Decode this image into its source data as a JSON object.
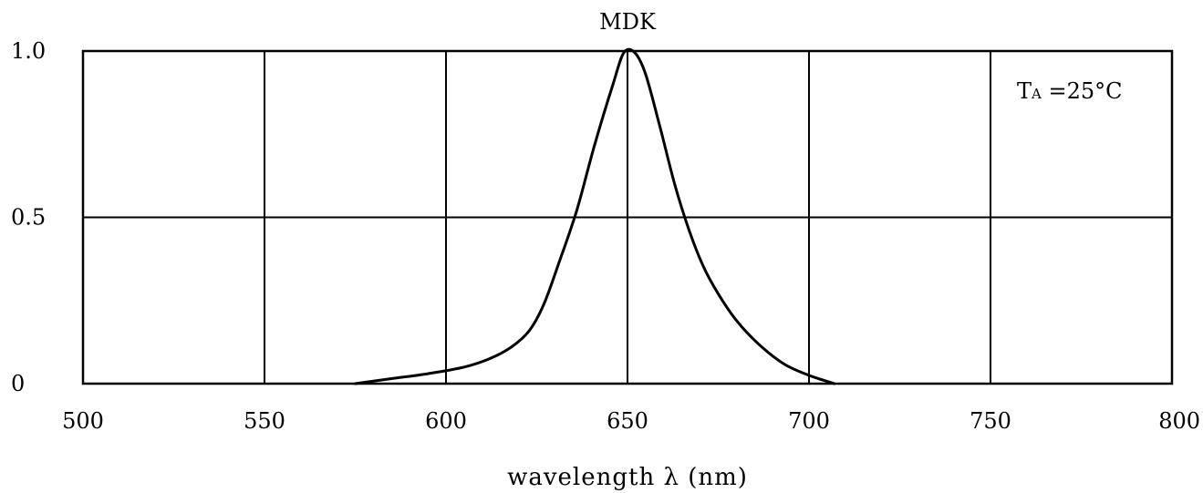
{
  "chart_data": {
    "type": "line",
    "title": "MDK",
    "xlabel": "wavelength λ (nm)",
    "ylabel": "",
    "xlim": [
      500,
      800
    ],
    "ylim": [
      0,
      1.0
    ],
    "x_ticks": [
      "500",
      "550",
      "600",
      "650",
      "700",
      "750",
      "800"
    ],
    "y_ticks": [
      "0",
      "0.5",
      "1.0"
    ],
    "grid": true,
    "annotation": "Tₐ = 25°C",
    "annotation_parts": {
      "main": "T",
      "sub": "A",
      "rest": " =25°C"
    },
    "series": [
      {
        "x": [
          575,
          585,
          595,
          605,
          612,
          618,
          623,
          627,
          631,
          636,
          641,
          646,
          649,
          652,
          655,
          659,
          663,
          667,
          671,
          675,
          680,
          686,
          693,
          700,
          707
        ],
        "y": [
          0.0,
          0.015,
          0.03,
          0.05,
          0.075,
          0.11,
          0.16,
          0.24,
          0.36,
          0.52,
          0.72,
          0.9,
          0.995,
          0.995,
          0.93,
          0.77,
          0.6,
          0.46,
          0.35,
          0.27,
          0.19,
          0.12,
          0.06,
          0.025,
          0.0
        ]
      }
    ]
  }
}
